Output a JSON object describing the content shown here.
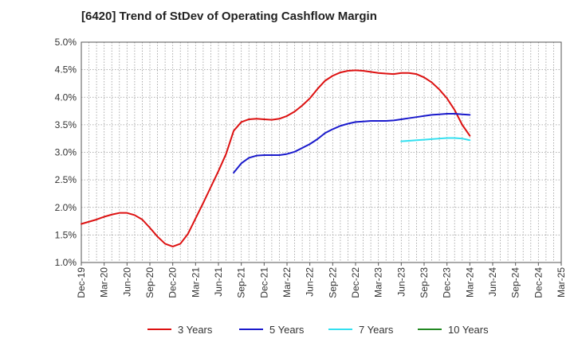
{
  "chart_data": {
    "type": "line",
    "title": "[6420]  Trend of StDev of Operating Cashflow Margin",
    "xlabel": "",
    "ylabel": "",
    "x_tick_labels": [
      "Dec-19",
      "Mar-20",
      "Jun-20",
      "Sep-20",
      "Dec-20",
      "Mar-21",
      "Jun-21",
      "Sep-21",
      "Dec-21",
      "Mar-22",
      "Jun-22",
      "Sep-22",
      "Dec-22",
      "Mar-23",
      "Jun-23",
      "Sep-23",
      "Dec-23",
      "Mar-24",
      "Jun-24",
      "Sep-24",
      "Dec-24",
      "Mar-25"
    ],
    "y_tick_labels": [
      "1.0%",
      "1.5%",
      "2.0%",
      "2.5%",
      "3.0%",
      "3.5%",
      "4.0%",
      "4.5%",
      "5.0%"
    ],
    "ylim": [
      1.0,
      5.0
    ],
    "y_unit": "%",
    "grid": true,
    "legend_position": "bottom",
    "series": [
      {
        "name": "3 Years",
        "color": "#dd1111",
        "points": [
          [
            "Dec-19",
            1.7
          ],
          [
            "Jan-20",
            1.74
          ],
          [
            "Feb-20",
            1.78
          ],
          [
            "Mar-20",
            1.83
          ],
          [
            "Apr-20",
            1.87
          ],
          [
            "May-20",
            1.9
          ],
          [
            "Jun-20",
            1.9
          ],
          [
            "Jul-20",
            1.86
          ],
          [
            "Aug-20",
            1.78
          ],
          [
            "Sep-20",
            1.63
          ],
          [
            "Oct-20",
            1.47
          ],
          [
            "Nov-20",
            1.34
          ],
          [
            "Dec-20",
            1.29
          ],
          [
            "Jan-21",
            1.34
          ],
          [
            "Feb-21",
            1.52
          ],
          [
            "Mar-21",
            1.8
          ],
          [
            "Apr-21",
            2.08
          ],
          [
            "May-21",
            2.37
          ],
          [
            "Jun-21",
            2.66
          ],
          [
            "Jul-21",
            2.97
          ],
          [
            "Aug-21",
            3.39
          ],
          [
            "Sep-21",
            3.55
          ],
          [
            "Oct-21",
            3.6
          ],
          [
            "Nov-21",
            3.61
          ],
          [
            "Dec-21",
            3.6
          ],
          [
            "Jan-22",
            3.59
          ],
          [
            "Feb-22",
            3.61
          ],
          [
            "Mar-22",
            3.66
          ],
          [
            "Apr-22",
            3.74
          ],
          [
            "May-22",
            3.85
          ],
          [
            "Jun-22",
            3.98
          ],
          [
            "Jul-22",
            4.15
          ],
          [
            "Aug-22",
            4.3
          ],
          [
            "Sep-22",
            4.39
          ],
          [
            "Oct-22",
            4.45
          ],
          [
            "Nov-22",
            4.48
          ],
          [
            "Dec-22",
            4.49
          ],
          [
            "Jan-23",
            4.48
          ],
          [
            "Feb-23",
            4.46
          ],
          [
            "Mar-23",
            4.44
          ],
          [
            "Apr-23",
            4.43
          ],
          [
            "May-23",
            4.42
          ],
          [
            "Jun-23",
            4.44
          ],
          [
            "Jul-23",
            4.44
          ],
          [
            "Aug-23",
            4.42
          ],
          [
            "Sep-23",
            4.36
          ],
          [
            "Oct-23",
            4.27
          ],
          [
            "Nov-23",
            4.14
          ],
          [
            "Dec-23",
            3.98
          ],
          [
            "Jan-24",
            3.77
          ],
          [
            "Feb-24",
            3.5
          ],
          [
            "Mar-24",
            3.3
          ]
        ]
      },
      {
        "name": "5 Years",
        "color": "#1a1acc",
        "points": [
          [
            "Aug-21",
            2.63
          ],
          [
            "Sep-21",
            2.8
          ],
          [
            "Oct-21",
            2.9
          ],
          [
            "Nov-21",
            2.94
          ],
          [
            "Dec-21",
            2.95
          ],
          [
            "Jan-22",
            2.95
          ],
          [
            "Feb-22",
            2.95
          ],
          [
            "Mar-22",
            2.97
          ],
          [
            "Apr-22",
            3.01
          ],
          [
            "May-22",
            3.08
          ],
          [
            "Jun-22",
            3.15
          ],
          [
            "Jul-22",
            3.24
          ],
          [
            "Aug-22",
            3.35
          ],
          [
            "Sep-22",
            3.42
          ],
          [
            "Oct-22",
            3.48
          ],
          [
            "Nov-22",
            3.52
          ],
          [
            "Dec-22",
            3.55
          ],
          [
            "Jan-23",
            3.56
          ],
          [
            "Feb-23",
            3.57
          ],
          [
            "Mar-23",
            3.57
          ],
          [
            "Apr-23",
            3.57
          ],
          [
            "May-23",
            3.58
          ],
          [
            "Jun-23",
            3.6
          ],
          [
            "Jul-23",
            3.62
          ],
          [
            "Aug-23",
            3.64
          ],
          [
            "Sep-23",
            3.66
          ],
          [
            "Oct-23",
            3.68
          ],
          [
            "Nov-23",
            3.69
          ],
          [
            "Dec-23",
            3.7
          ],
          [
            "Jan-24",
            3.7
          ],
          [
            "Feb-24",
            3.69
          ],
          [
            "Mar-24",
            3.68
          ]
        ]
      },
      {
        "name": "7 Years",
        "color": "#33e0f0",
        "points": [
          [
            "Jun-23",
            3.2
          ],
          [
            "Jul-23",
            3.21
          ],
          [
            "Aug-23",
            3.22
          ],
          [
            "Sep-23",
            3.23
          ],
          [
            "Oct-23",
            3.24
          ],
          [
            "Nov-23",
            3.25
          ],
          [
            "Dec-23",
            3.26
          ],
          [
            "Jan-24",
            3.26
          ],
          [
            "Feb-24",
            3.25
          ],
          [
            "Mar-24",
            3.22
          ]
        ]
      },
      {
        "name": "10 Years",
        "color": "#228822",
        "points": []
      }
    ]
  }
}
